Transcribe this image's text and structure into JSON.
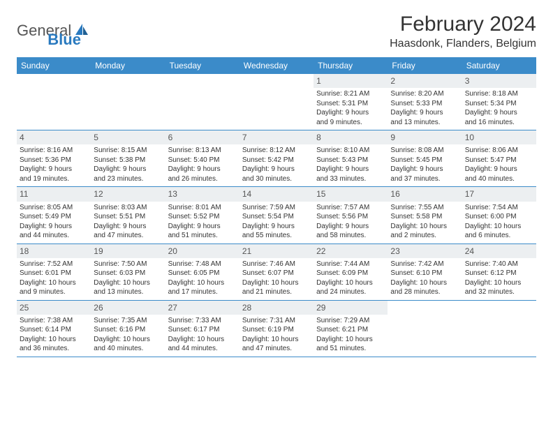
{
  "logo": {
    "general": "General",
    "blue": "Blue"
  },
  "title": "February 2024",
  "location": "Haasdonk, Flanders, Belgium",
  "weekdays": [
    "Sunday",
    "Monday",
    "Tuesday",
    "Wednesday",
    "Thursday",
    "Friday",
    "Saturday"
  ],
  "colors": {
    "header_bg": "#3b8bc9",
    "daynum_bg": "#eceff1",
    "text": "#333333",
    "logo_gray": "#555555",
    "logo_blue": "#2a7abf",
    "border": "#3b8bc9"
  },
  "weeks": [
    [
      {
        "day": "",
        "sunrise": "",
        "sunset": "",
        "daylight1": "",
        "daylight2": ""
      },
      {
        "day": "",
        "sunrise": "",
        "sunset": "",
        "daylight1": "",
        "daylight2": ""
      },
      {
        "day": "",
        "sunrise": "",
        "sunset": "",
        "daylight1": "",
        "daylight2": ""
      },
      {
        "day": "",
        "sunrise": "",
        "sunset": "",
        "daylight1": "",
        "daylight2": ""
      },
      {
        "day": "1",
        "sunrise": "Sunrise: 8:21 AM",
        "sunset": "Sunset: 5:31 PM",
        "daylight1": "Daylight: 9 hours",
        "daylight2": "and 9 minutes."
      },
      {
        "day": "2",
        "sunrise": "Sunrise: 8:20 AM",
        "sunset": "Sunset: 5:33 PM",
        "daylight1": "Daylight: 9 hours",
        "daylight2": "and 13 minutes."
      },
      {
        "day": "3",
        "sunrise": "Sunrise: 8:18 AM",
        "sunset": "Sunset: 5:34 PM",
        "daylight1": "Daylight: 9 hours",
        "daylight2": "and 16 minutes."
      }
    ],
    [
      {
        "day": "4",
        "sunrise": "Sunrise: 8:16 AM",
        "sunset": "Sunset: 5:36 PM",
        "daylight1": "Daylight: 9 hours",
        "daylight2": "and 19 minutes."
      },
      {
        "day": "5",
        "sunrise": "Sunrise: 8:15 AM",
        "sunset": "Sunset: 5:38 PM",
        "daylight1": "Daylight: 9 hours",
        "daylight2": "and 23 minutes."
      },
      {
        "day": "6",
        "sunrise": "Sunrise: 8:13 AM",
        "sunset": "Sunset: 5:40 PM",
        "daylight1": "Daylight: 9 hours",
        "daylight2": "and 26 minutes."
      },
      {
        "day": "7",
        "sunrise": "Sunrise: 8:12 AM",
        "sunset": "Sunset: 5:42 PM",
        "daylight1": "Daylight: 9 hours",
        "daylight2": "and 30 minutes."
      },
      {
        "day": "8",
        "sunrise": "Sunrise: 8:10 AM",
        "sunset": "Sunset: 5:43 PM",
        "daylight1": "Daylight: 9 hours",
        "daylight2": "and 33 minutes."
      },
      {
        "day": "9",
        "sunrise": "Sunrise: 8:08 AM",
        "sunset": "Sunset: 5:45 PM",
        "daylight1": "Daylight: 9 hours",
        "daylight2": "and 37 minutes."
      },
      {
        "day": "10",
        "sunrise": "Sunrise: 8:06 AM",
        "sunset": "Sunset: 5:47 PM",
        "daylight1": "Daylight: 9 hours",
        "daylight2": "and 40 minutes."
      }
    ],
    [
      {
        "day": "11",
        "sunrise": "Sunrise: 8:05 AM",
        "sunset": "Sunset: 5:49 PM",
        "daylight1": "Daylight: 9 hours",
        "daylight2": "and 44 minutes."
      },
      {
        "day": "12",
        "sunrise": "Sunrise: 8:03 AM",
        "sunset": "Sunset: 5:51 PM",
        "daylight1": "Daylight: 9 hours",
        "daylight2": "and 47 minutes."
      },
      {
        "day": "13",
        "sunrise": "Sunrise: 8:01 AM",
        "sunset": "Sunset: 5:52 PM",
        "daylight1": "Daylight: 9 hours",
        "daylight2": "and 51 minutes."
      },
      {
        "day": "14",
        "sunrise": "Sunrise: 7:59 AM",
        "sunset": "Sunset: 5:54 PM",
        "daylight1": "Daylight: 9 hours",
        "daylight2": "and 55 minutes."
      },
      {
        "day": "15",
        "sunrise": "Sunrise: 7:57 AM",
        "sunset": "Sunset: 5:56 PM",
        "daylight1": "Daylight: 9 hours",
        "daylight2": "and 58 minutes."
      },
      {
        "day": "16",
        "sunrise": "Sunrise: 7:55 AM",
        "sunset": "Sunset: 5:58 PM",
        "daylight1": "Daylight: 10 hours",
        "daylight2": "and 2 minutes."
      },
      {
        "day": "17",
        "sunrise": "Sunrise: 7:54 AM",
        "sunset": "Sunset: 6:00 PM",
        "daylight1": "Daylight: 10 hours",
        "daylight2": "and 6 minutes."
      }
    ],
    [
      {
        "day": "18",
        "sunrise": "Sunrise: 7:52 AM",
        "sunset": "Sunset: 6:01 PM",
        "daylight1": "Daylight: 10 hours",
        "daylight2": "and 9 minutes."
      },
      {
        "day": "19",
        "sunrise": "Sunrise: 7:50 AM",
        "sunset": "Sunset: 6:03 PM",
        "daylight1": "Daylight: 10 hours",
        "daylight2": "and 13 minutes."
      },
      {
        "day": "20",
        "sunrise": "Sunrise: 7:48 AM",
        "sunset": "Sunset: 6:05 PM",
        "daylight1": "Daylight: 10 hours",
        "daylight2": "and 17 minutes."
      },
      {
        "day": "21",
        "sunrise": "Sunrise: 7:46 AM",
        "sunset": "Sunset: 6:07 PM",
        "daylight1": "Daylight: 10 hours",
        "daylight2": "and 21 minutes."
      },
      {
        "day": "22",
        "sunrise": "Sunrise: 7:44 AM",
        "sunset": "Sunset: 6:09 PM",
        "daylight1": "Daylight: 10 hours",
        "daylight2": "and 24 minutes."
      },
      {
        "day": "23",
        "sunrise": "Sunrise: 7:42 AM",
        "sunset": "Sunset: 6:10 PM",
        "daylight1": "Daylight: 10 hours",
        "daylight2": "and 28 minutes."
      },
      {
        "day": "24",
        "sunrise": "Sunrise: 7:40 AM",
        "sunset": "Sunset: 6:12 PM",
        "daylight1": "Daylight: 10 hours",
        "daylight2": "and 32 minutes."
      }
    ],
    [
      {
        "day": "25",
        "sunrise": "Sunrise: 7:38 AM",
        "sunset": "Sunset: 6:14 PM",
        "daylight1": "Daylight: 10 hours",
        "daylight2": "and 36 minutes."
      },
      {
        "day": "26",
        "sunrise": "Sunrise: 7:35 AM",
        "sunset": "Sunset: 6:16 PM",
        "daylight1": "Daylight: 10 hours",
        "daylight2": "and 40 minutes."
      },
      {
        "day": "27",
        "sunrise": "Sunrise: 7:33 AM",
        "sunset": "Sunset: 6:17 PM",
        "daylight1": "Daylight: 10 hours",
        "daylight2": "and 44 minutes."
      },
      {
        "day": "28",
        "sunrise": "Sunrise: 7:31 AM",
        "sunset": "Sunset: 6:19 PM",
        "daylight1": "Daylight: 10 hours",
        "daylight2": "and 47 minutes."
      },
      {
        "day": "29",
        "sunrise": "Sunrise: 7:29 AM",
        "sunset": "Sunset: 6:21 PM",
        "daylight1": "Daylight: 10 hours",
        "daylight2": "and 51 minutes."
      },
      {
        "day": "",
        "sunrise": "",
        "sunset": "",
        "daylight1": "",
        "daylight2": ""
      },
      {
        "day": "",
        "sunrise": "",
        "sunset": "",
        "daylight1": "",
        "daylight2": ""
      }
    ]
  ]
}
